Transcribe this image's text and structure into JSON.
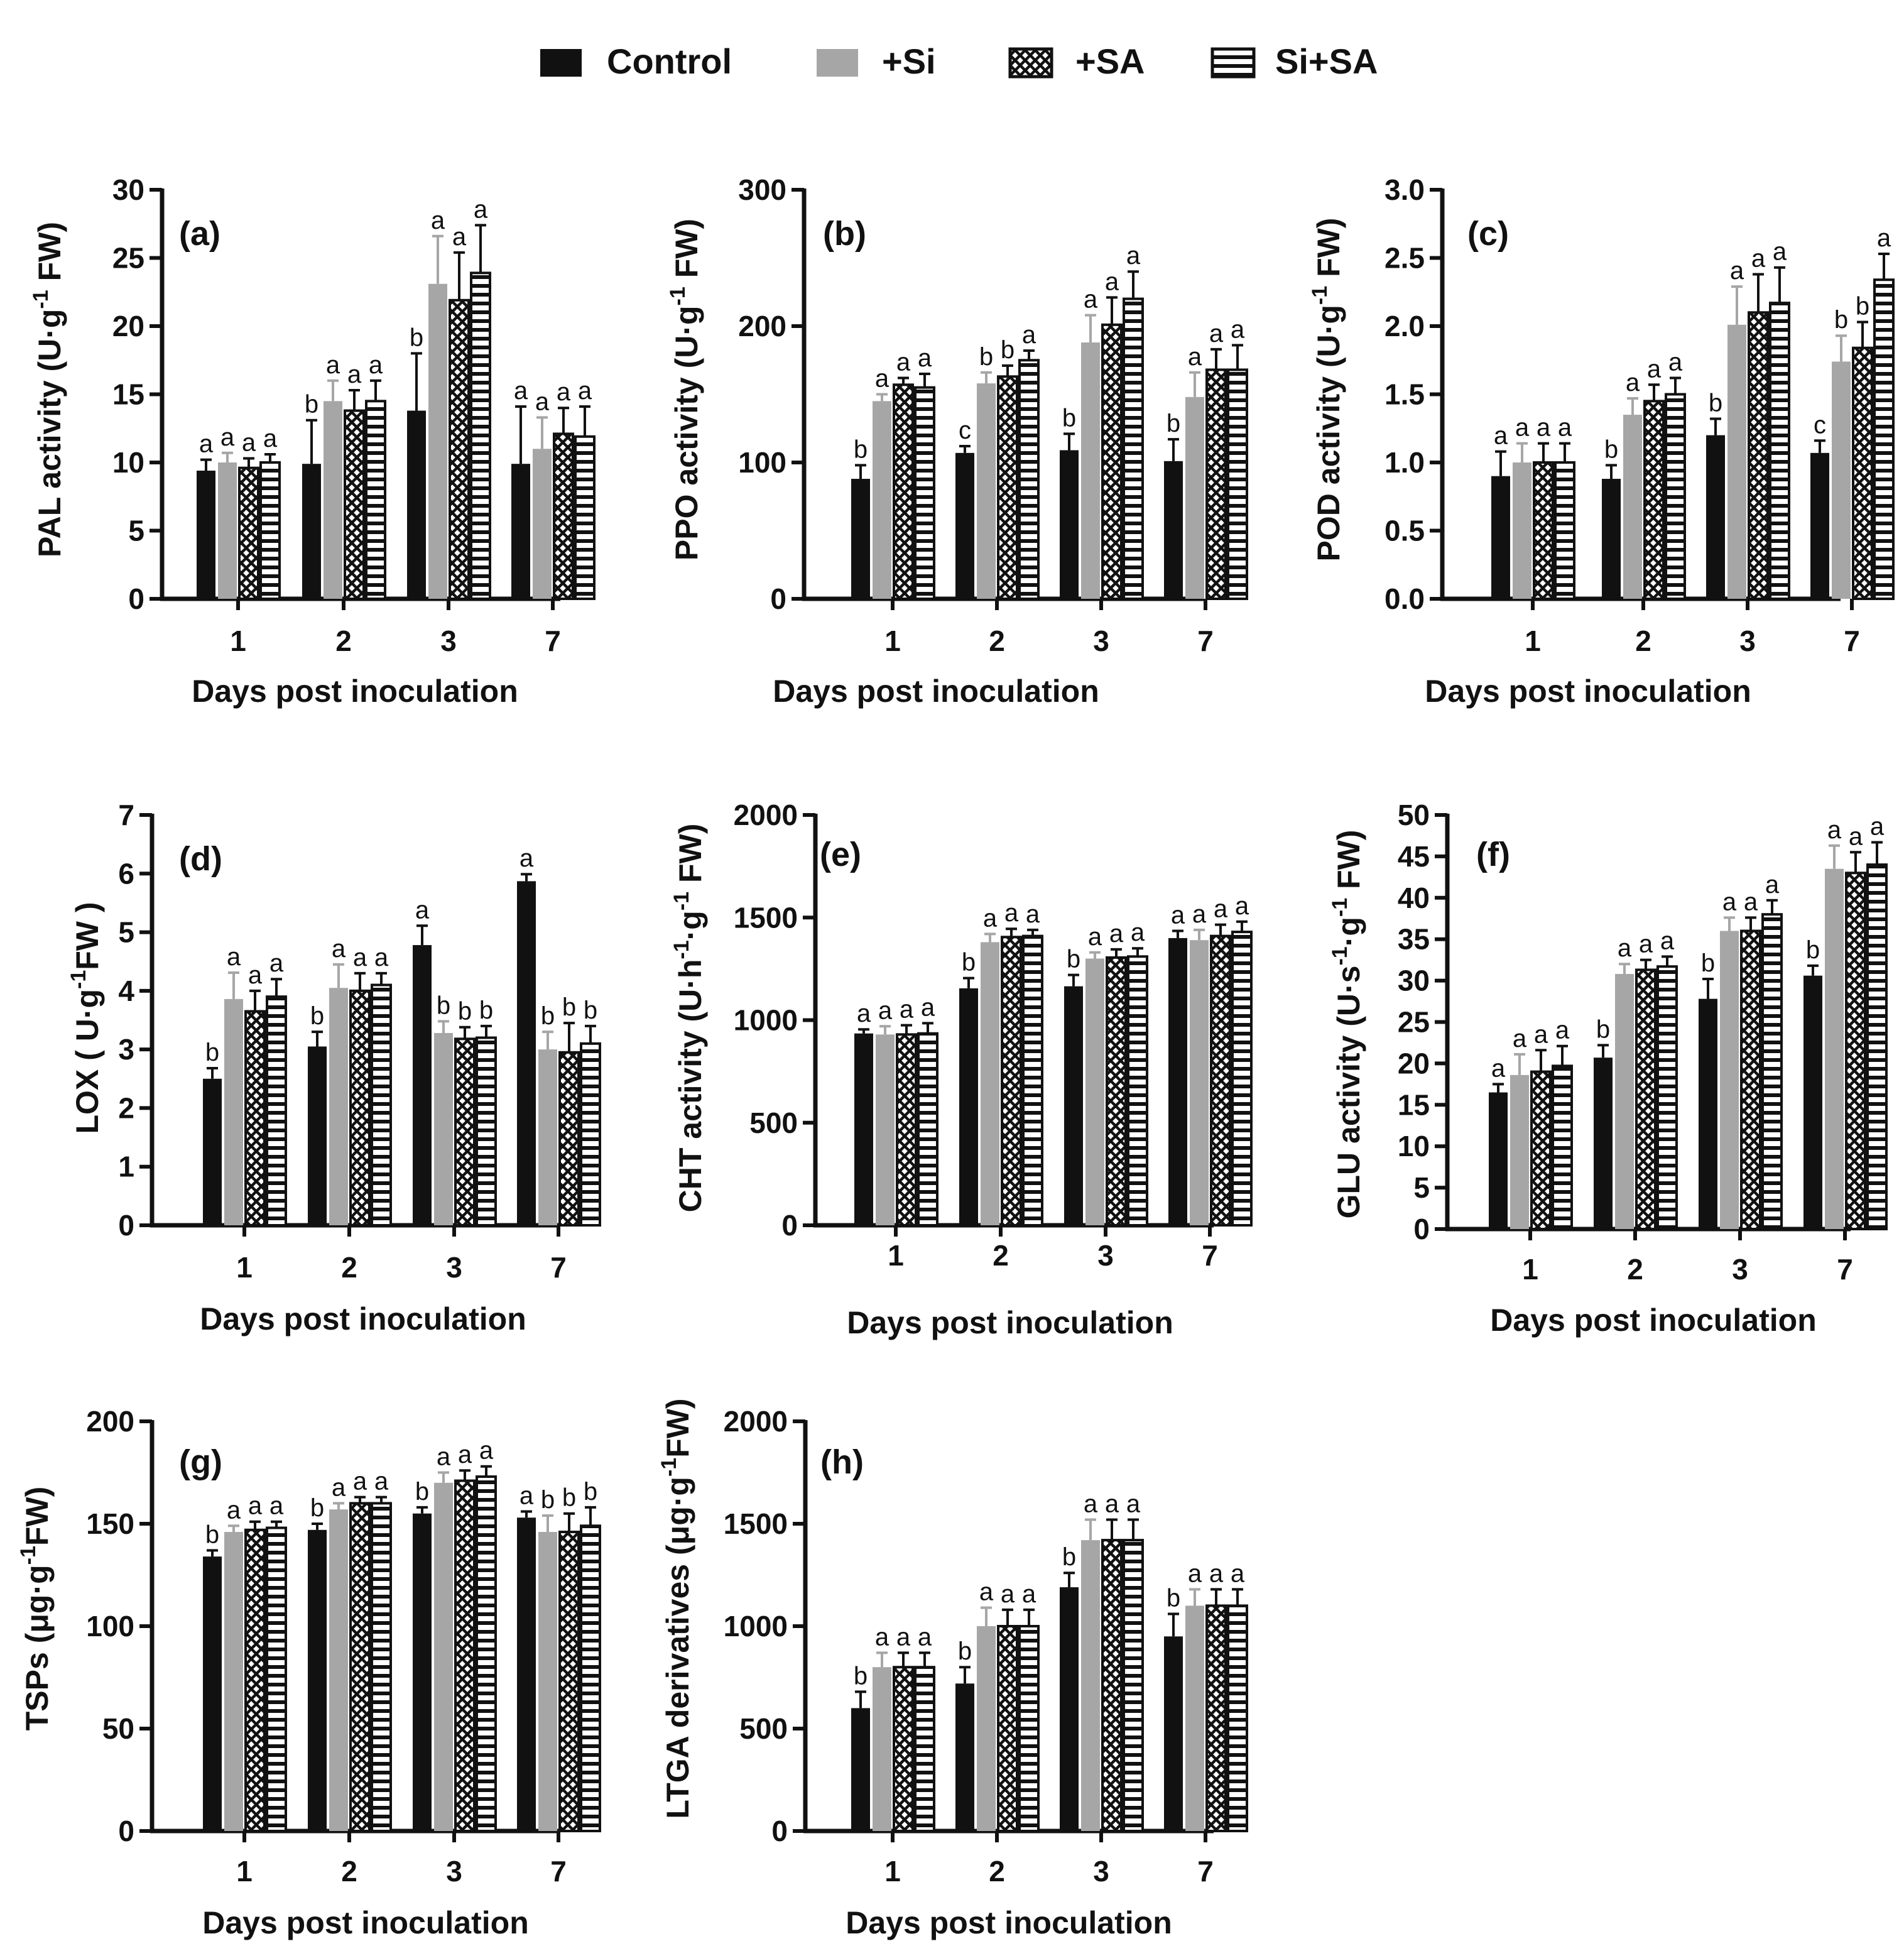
{
  "legend": [
    {
      "name": "Control",
      "fill": "solid-black"
    },
    {
      "name": "+Si",
      "fill": "solid-gray"
    },
    {
      "name": "+SA",
      "fill": "crosshatch"
    },
    {
      "name": "Si+SA",
      "fill": "horizontal-lines"
    }
  ],
  "colors": {
    "control": "#111111",
    "si": "#a6a6a6",
    "pattern_stroke": "#111111",
    "background": "#ffffff"
  },
  "chart_data": [
    {
      "type": "bar",
      "panel": "(a)",
      "ylabel": {
        "main": "PAL activity (U·g",
        "sup": "-1",
        "tail": " FW)"
      },
      "xlabel": "Days post inoculation",
      "categories": [
        "1",
        "2",
        "3",
        "7"
      ],
      "ylim": [
        0,
        30
      ],
      "yticks": [
        0,
        5,
        10,
        15,
        20,
        25,
        30
      ],
      "series": [
        {
          "name": "Control",
          "values": [
            9.4,
            9.9,
            13.8,
            9.9
          ],
          "errors": [
            0.8,
            3.2,
            4.2,
            4.2
          ],
          "letters": [
            "a",
            "b",
            "b",
            "a"
          ]
        },
        {
          "name": "+Si",
          "values": [
            10.0,
            14.5,
            23.1,
            11.0
          ],
          "errors": [
            0.7,
            1.5,
            3.5,
            2.3
          ],
          "letters": [
            "a",
            "a",
            "a",
            "a"
          ]
        },
        {
          "name": "+SA",
          "values": [
            9.6,
            13.8,
            21.9,
            12.1
          ],
          "errors": [
            0.7,
            1.5,
            3.5,
            1.9
          ],
          "letters": [
            "a",
            "a",
            "a",
            "a"
          ]
        },
        {
          "name": "Si+SA",
          "values": [
            10.0,
            14.5,
            23.9,
            11.9
          ],
          "errors": [
            0.6,
            1.5,
            3.5,
            2.2
          ],
          "letters": [
            "a",
            "a",
            "a",
            "a"
          ]
        }
      ]
    },
    {
      "type": "bar",
      "panel": "(b)",
      "ylabel": {
        "main": "PPO activity (U·g",
        "sup": "-1",
        "tail": " FW)"
      },
      "xlabel": "Days post inoculation",
      "categories": [
        "1",
        "2",
        "3",
        "7"
      ],
      "ylim": [
        0,
        300
      ],
      "yticks": [
        0,
        100,
        200,
        300
      ],
      "series": [
        {
          "name": "Control",
          "values": [
            88,
            107,
            109,
            101
          ],
          "errors": [
            10,
            5,
            12,
            16
          ],
          "letters": [
            "b",
            "c",
            "b",
            "b"
          ]
        },
        {
          "name": "+Si",
          "values": [
            145,
            158,
            188,
            148
          ],
          "errors": [
            5,
            8,
            20,
            18
          ],
          "letters": [
            "a",
            "b",
            "a",
            "a"
          ]
        },
        {
          "name": "+SA",
          "values": [
            157,
            163,
            201,
            168
          ],
          "errors": [
            5,
            8,
            20,
            15
          ],
          "letters": [
            "a",
            "b",
            "a",
            "a"
          ]
        },
        {
          "name": "Si+SA",
          "values": [
            155,
            175,
            220,
            168
          ],
          "errors": [
            10,
            7,
            20,
            18
          ],
          "letters": [
            "a",
            "a",
            "a",
            "a"
          ]
        }
      ]
    },
    {
      "type": "bar",
      "panel": "(c)",
      "ylabel": {
        "main": "POD activity (U·g",
        "sup": "-1",
        "tail": " FW)"
      },
      "xlabel": "Days post inoculation",
      "categories": [
        "1",
        "2",
        "3",
        "7"
      ],
      "ylim": [
        0,
        3.0
      ],
      "yticks": [
        "0.0",
        "0.5",
        "1.0",
        "1.5",
        "2.0",
        "2.5",
        "3.0"
      ],
      "series": [
        {
          "name": "Control",
          "values": [
            0.9,
            0.88,
            1.2,
            1.07
          ],
          "errors": [
            0.18,
            0.1,
            0.12,
            0.09
          ],
          "letters": [
            "a",
            "b",
            "b",
            "c"
          ]
        },
        {
          "name": "+Si",
          "values": [
            1.0,
            1.35,
            2.01,
            1.74
          ],
          "errors": [
            0.14,
            0.12,
            0.28,
            0.19
          ],
          "letters": [
            "a",
            "a",
            "a",
            "b"
          ]
        },
        {
          "name": "+SA",
          "values": [
            1.0,
            1.45,
            2.1,
            1.84
          ],
          "errors": [
            0.14,
            0.12,
            0.28,
            0.19
          ],
          "letters": [
            "a",
            "a",
            "a",
            "b"
          ]
        },
        {
          "name": "Si+SA",
          "values": [
            1.0,
            1.5,
            2.17,
            2.34
          ],
          "errors": [
            0.14,
            0.12,
            0.26,
            0.19
          ],
          "letters": [
            "a",
            "a",
            "a",
            "a"
          ]
        }
      ]
    },
    {
      "type": "bar",
      "panel": "(d)",
      "ylabel": {
        "main": "LOX ( U·g",
        "sup": "-1",
        "tail": "FW )"
      },
      "xlabel": "Days post inoculation",
      "categories": [
        "1",
        "2",
        "3",
        "7"
      ],
      "ylim": [
        0,
        7
      ],
      "yticks": [
        0,
        1,
        2,
        3,
        4,
        5,
        6,
        7
      ],
      "series": [
        {
          "name": "Control",
          "values": [
            2.5,
            3.05,
            4.78,
            5.87
          ],
          "errors": [
            0.18,
            0.25,
            0.33,
            0.12
          ],
          "letters": [
            "b",
            "b",
            "a",
            "a"
          ]
        },
        {
          "name": "+Si",
          "values": [
            3.86,
            4.05,
            3.28,
            3.0
          ],
          "errors": [
            0.45,
            0.4,
            0.2,
            0.3
          ],
          "letters": [
            "a",
            "a",
            "b",
            "b"
          ]
        },
        {
          "name": "+SA",
          "values": [
            3.65,
            4.0,
            3.18,
            2.95
          ],
          "errors": [
            0.35,
            0.3,
            0.2,
            0.5
          ],
          "letters": [
            "a",
            "a",
            "b",
            "b"
          ]
        },
        {
          "name": "Si+SA",
          "values": [
            3.9,
            4.1,
            3.2,
            3.1
          ],
          "errors": [
            0.3,
            0.2,
            0.2,
            0.3
          ],
          "letters": [
            "a",
            "a",
            "b",
            "b"
          ]
        }
      ]
    },
    {
      "type": "bar",
      "panel": "(e)",
      "ylabel": {
        "main": "CHT activity (U·h",
        "sup": "-1",
        "mid": "·g",
        "sup2": "-1",
        "tail": " FW)"
      },
      "xlabel": "Days post inoculation",
      "categories": [
        "1",
        "2",
        "3",
        "7"
      ],
      "ylim": [
        0,
        2000
      ],
      "yticks": [
        0,
        500,
        1000,
        1500,
        2000
      ],
      "series": [
        {
          "name": "Control",
          "values": [
            935,
            1155,
            1165,
            1400
          ],
          "errors": [
            20,
            50,
            55,
            35
          ],
          "letters": [
            "a",
            "b",
            "b",
            "a"
          ]
        },
        {
          "name": "+Si",
          "values": [
            930,
            1380,
            1300,
            1390
          ],
          "errors": [
            40,
            40,
            30,
            50
          ],
          "letters": [
            "a",
            "a",
            "a",
            "a"
          ]
        },
        {
          "name": "+SA",
          "values": [
            930,
            1405,
            1305,
            1410
          ],
          "errors": [
            45,
            40,
            40,
            55
          ],
          "letters": [
            "a",
            "a",
            "a",
            "a"
          ]
        },
        {
          "name": "Si+SA",
          "values": [
            935,
            1410,
            1310,
            1430
          ],
          "errors": [
            50,
            30,
            40,
            50
          ],
          "letters": [
            "a",
            "a",
            "a",
            "a"
          ]
        }
      ]
    },
    {
      "type": "bar",
      "panel": "(f)",
      "ylabel": {
        "main": "GLU activity (U·s",
        "sup": "-1",
        "mid": "·g",
        "sup2": "-1",
        "tail": " FW)"
      },
      "xlabel": "Days post inoculation",
      "categories": [
        "1",
        "2",
        "3",
        "7"
      ],
      "ylim": [
        0,
        50
      ],
      "yticks": [
        0,
        5,
        10,
        15,
        20,
        25,
        30,
        35,
        40,
        45,
        50
      ],
      "series": [
        {
          "name": "Control",
          "values": [
            16.5,
            20.7,
            27.8,
            30.6
          ],
          "errors": [
            1.0,
            1.5,
            2.4,
            1.2
          ],
          "letters": [
            "a",
            "b",
            "b",
            "b"
          ]
        },
        {
          "name": "+Si",
          "values": [
            18.6,
            30.8,
            36.0,
            43.5
          ],
          "errors": [
            2.5,
            1.2,
            1.6,
            2.8
          ],
          "letters": [
            "a",
            "a",
            "a",
            "a"
          ]
        },
        {
          "name": "+SA",
          "values": [
            19.0,
            31.3,
            36.0,
            43.0
          ],
          "errors": [
            2.6,
            1.2,
            1.6,
            2.5
          ],
          "letters": [
            "a",
            "a",
            "a",
            "a"
          ]
        },
        {
          "name": "Si+SA",
          "values": [
            19.7,
            31.7,
            38.0,
            44.0
          ],
          "errors": [
            2.4,
            1.2,
            1.7,
            2.7
          ],
          "letters": [
            "a",
            "a",
            "a",
            "a"
          ]
        }
      ]
    },
    {
      "type": "bar",
      "panel": "(g)",
      "ylabel": {
        "main": "TSPs (μg·g",
        "sup": "-1",
        "tail": "FW)"
      },
      "xlabel": "Days post inoculation",
      "categories": [
        "1",
        "2",
        "3",
        "7"
      ],
      "ylim": [
        0,
        200
      ],
      "yticks": [
        0,
        50,
        100,
        150,
        200
      ],
      "series": [
        {
          "name": "Control",
          "values": [
            134,
            147,
            155,
            153
          ],
          "errors": [
            3,
            3,
            3,
            3
          ],
          "letters": [
            "b",
            "b",
            "b",
            "a"
          ]
        },
        {
          "name": "+Si",
          "values": [
            146,
            157,
            170,
            146
          ],
          "errors": [
            3,
            3,
            5,
            8
          ],
          "letters": [
            "a",
            "a",
            "a",
            "b"
          ]
        },
        {
          "name": "+SA",
          "values": [
            147,
            160,
            171,
            146
          ],
          "errors": [
            4,
            3,
            5,
            9
          ],
          "letters": [
            "a",
            "a",
            "a",
            "b"
          ]
        },
        {
          "name": "Si+SA",
          "values": [
            148,
            160,
            173,
            149
          ],
          "errors": [
            3,
            3,
            5,
            9
          ],
          "letters": [
            "a",
            "a",
            "a",
            "b"
          ]
        }
      ]
    },
    {
      "type": "bar",
      "panel": "(h)",
      "ylabel": {
        "main": "LTGA derivatives (μg·g",
        "sup": "-1",
        "tail": "FW)"
      },
      "xlabel": "Days post inoculation",
      "categories": [
        "1",
        "2",
        "3",
        "7"
      ],
      "ylim": [
        0,
        2000
      ],
      "yticks": [
        0,
        500,
        1000,
        1500,
        2000
      ],
      "series": [
        {
          "name": "Control",
          "values": [
            600,
            720,
            1190,
            950
          ],
          "errors": [
            80,
            80,
            70,
            110
          ],
          "letters": [
            "b",
            "b",
            "b",
            "b"
          ]
        },
        {
          "name": "+Si",
          "values": [
            800,
            1000,
            1420,
            1100
          ],
          "errors": [
            70,
            90,
            100,
            80
          ],
          "letters": [
            "a",
            "a",
            "a",
            "a"
          ]
        },
        {
          "name": "+SA",
          "values": [
            800,
            1000,
            1420,
            1100
          ],
          "errors": [
            70,
            80,
            100,
            80
          ],
          "letters": [
            "a",
            "a",
            "a",
            "a"
          ]
        },
        {
          "name": "Si+SA",
          "values": [
            800,
            1000,
            1420,
            1100
          ],
          "errors": [
            70,
            80,
            100,
            80
          ],
          "letters": [
            "a",
            "a",
            "a",
            "a"
          ]
        }
      ]
    }
  ]
}
